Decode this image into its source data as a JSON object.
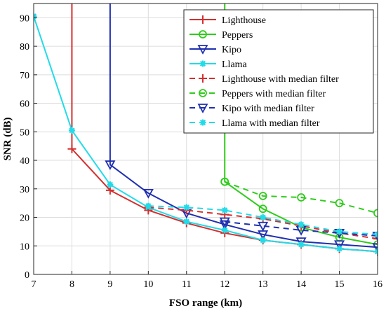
{
  "chart_data": {
    "type": "line",
    "title": "",
    "xlabel": "FSO range (km)",
    "ylabel": "SNR (dB)",
    "xlim": [
      7,
      16
    ],
    "ylim": [
      0,
      95
    ],
    "xticks": [
      7,
      8,
      9,
      10,
      11,
      12,
      13,
      14,
      15,
      16
    ],
    "yticks": [
      0,
      10,
      20,
      30,
      40,
      50,
      60,
      70,
      80,
      90
    ],
    "grid": true,
    "legend_position": "top-right",
    "series": [
      {
        "name": "Lighthouse",
        "color": "#d32f2f",
        "style": "solid",
        "marker": "plus",
        "marker_every": 1,
        "x": [
          8,
          8,
          9,
          10,
          11,
          12,
          13,
          14,
          15,
          16
        ],
        "y": [
          95,
          44,
          29.5,
          22.5,
          18,
          14.5,
          12,
          10.5,
          9,
          8
        ]
      },
      {
        "name": "Peppers",
        "color": "#2ecc1a",
        "style": "solid",
        "marker": "circle",
        "marker_every": 1,
        "x": [
          12,
          12,
          13,
          14,
          15,
          16
        ],
        "y": [
          95,
          32.5,
          23,
          16.5,
          13,
          10.5
        ]
      },
      {
        "name": "Kipo",
        "color": "#1f2fb0",
        "style": "solid",
        "marker": "triangle-down",
        "marker_every": 1,
        "x": [
          9,
          9,
          10,
          11,
          12,
          13,
          14,
          15,
          16
        ],
        "y": [
          95,
          38.5,
          28.5,
          21.5,
          17.5,
          14,
          11.5,
          10.5,
          9.5
        ]
      },
      {
        "name": "Llama",
        "color": "#22dbe8",
        "style": "solid",
        "marker": "star",
        "marker_every": 1,
        "x": [
          7,
          8,
          9,
          10,
          11,
          12,
          13,
          14,
          15,
          16
        ],
        "y": [
          90.5,
          50.5,
          31.5,
          23.5,
          18.5,
          15.5,
          12,
          10.5,
          9,
          8
        ]
      },
      {
        "name": "Lighthouse with median filter",
        "color": "#d32f2f",
        "style": "dashed",
        "marker": "plus",
        "marker_every": 1,
        "x": [
          10,
          11,
          12,
          13,
          14,
          15,
          16
        ],
        "y": [
          23.5,
          22.5,
          21,
          19.5,
          17,
          14.5,
          12.5
        ]
      },
      {
        "name": "Peppers with median filter",
        "color": "#2ecc1a",
        "style": "dashed",
        "marker": "circle",
        "marker_every": 1,
        "x": [
          12,
          13,
          14,
          15,
          16
        ],
        "y": [
          32.5,
          27.5,
          27,
          25,
          21.5
        ]
      },
      {
        "name": "Kipo with median filter",
        "color": "#1f2fb0",
        "style": "dashed",
        "marker": "triangle-down",
        "marker_every": 1,
        "x": [
          12,
          13,
          14,
          15,
          16
        ],
        "y": [
          18.5,
          17,
          15.5,
          14.5,
          13.5
        ]
      },
      {
        "name": "Llama with median filter",
        "color": "#22dbe8",
        "style": "dashed",
        "marker": "star",
        "marker_every": 1,
        "x": [
          10,
          11,
          12,
          13,
          14,
          15,
          16
        ],
        "y": [
          24,
          23.5,
          22.5,
          20,
          17.5,
          15,
          14
        ]
      }
    ]
  }
}
